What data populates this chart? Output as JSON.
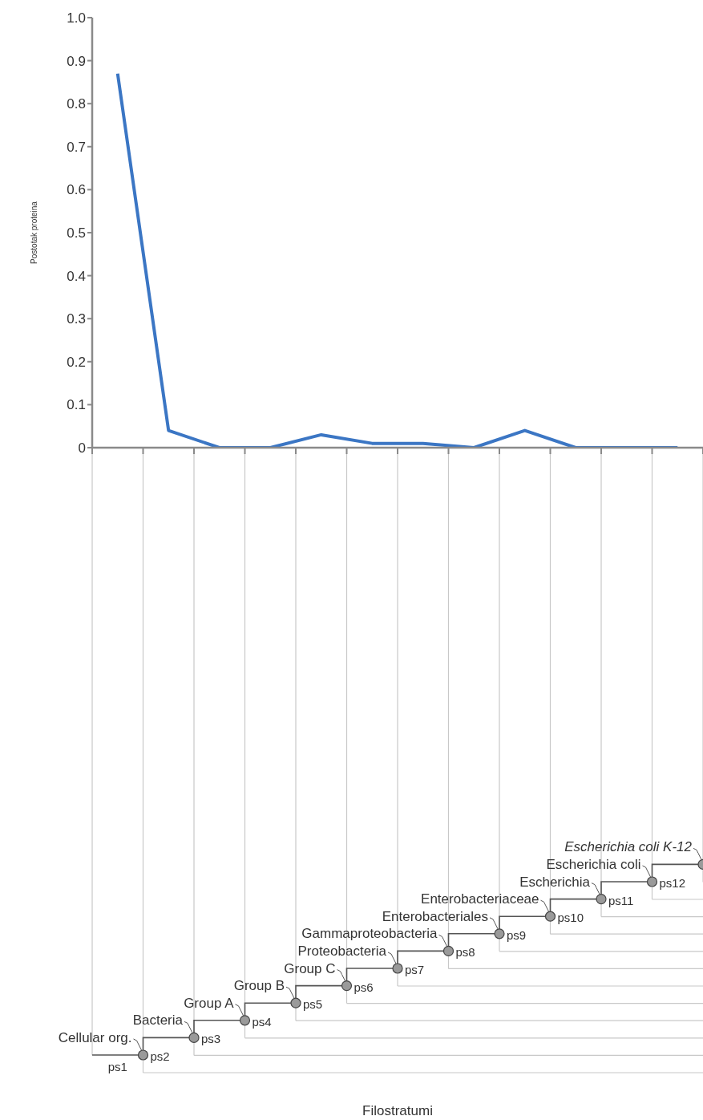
{
  "chart_data": {
    "type": "line",
    "ylabel": "Postotak proteina",
    "categories": [
      null,
      null,
      null,
      null,
      null,
      null,
      null,
      null,
      null,
      null,
      null,
      null
    ],
    "series": [
      {
        "color": "#3b76c4",
        "values": [
          0.87,
          0.04,
          0,
          0,
          0.03,
          0.01,
          0.01,
          0,
          0.04,
          0,
          0,
          0
        ]
      }
    ],
    "ylim": [
      0,
      1
    ],
    "yticks": [
      0,
      {
        "value": 0.1,
        "label": "0.1"
      },
      {
        "value": 0.2,
        "label": "0.2"
      },
      {
        "value": 0.3,
        "label": "0.3"
      },
      {
        "value": 0.4,
        "label": "0.4"
      },
      {
        "value": 0.5,
        "label": "0.5"
      },
      {
        "value": 0.6,
        "label": "0.6"
      },
      {
        "value": 0.7,
        "label": "0.7"
      },
      {
        "value": 0.8,
        "label": "0.8"
      },
      {
        "value": 0.9,
        "label": "0.9"
      },
      {
        "value": 1,
        "label": "1.0"
      }
    ],
    "marker": "none",
    "line_style": "solid",
    "annotations": [
      "Cellular org.",
      "Bacteria",
      "Group A",
      "Group B",
      "Group C",
      "Proteobacteria",
      "Gammaproteobacteria",
      "Enterobacteriales",
      "Enterobacteriaceae",
      "Escherichia",
      "Escherichia coli",
      "Escherichia coli K-12",
      "ps1",
      "ps2",
      "ps3",
      "ps4",
      "ps5",
      "ps6",
      "ps7",
      "ps8",
      "ps9",
      "ps10",
      "ps11",
      "ps12",
      "Filostratumi"
    ]
  }
}
